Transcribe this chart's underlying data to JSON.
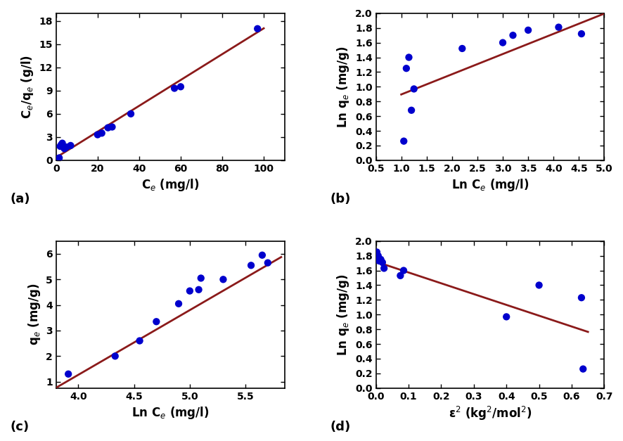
{
  "panel_a": {
    "scatter_x": [
      1.5,
      2.0,
      2.5,
      3.0,
      4.0,
      5.0,
      7.0,
      20.0,
      22.0,
      25.0,
      27.0,
      36.0,
      57.0,
      60.0,
      97.0
    ],
    "scatter_y": [
      0.3,
      1.8,
      2.0,
      2.2,
      1.5,
      1.7,
      1.9,
      3.3,
      3.5,
      4.2,
      4.3,
      6.0,
      9.3,
      9.5,
      17.0
    ],
    "line_x": [
      0,
      100
    ],
    "line_slope": 0.167,
    "line_intercept": 0.35,
    "xlabel": "C$_e$ (mg/l)",
    "ylabel": "C$_e$/q$_e$ (g/l)",
    "xlim": [
      0,
      110
    ],
    "ylim": [
      0,
      19
    ],
    "xticks": [
      0,
      20,
      40,
      60,
      80,
      100
    ],
    "yticks": [
      0,
      3,
      6,
      9,
      12,
      15,
      18
    ],
    "label": "(a)"
  },
  "panel_b": {
    "scatter_x": [
      1.05,
      1.1,
      1.15,
      1.2,
      1.25,
      2.2,
      3.0,
      3.2,
      3.5,
      4.1,
      4.55
    ],
    "scatter_y": [
      0.26,
      1.25,
      1.4,
      0.68,
      0.97,
      1.52,
      1.6,
      1.7,
      1.77,
      1.81,
      1.72
    ],
    "line_x": [
      1.0,
      5.0
    ],
    "line_slope": 0.275,
    "line_intercept": 0.62,
    "xlabel": "Ln C$_e$ (mg/l)",
    "ylabel": "Ln q$_e$ (mg/g)",
    "xlim": [
      0.5,
      5.0
    ],
    "ylim": [
      0.0,
      2.0
    ],
    "xticks": [
      0.5,
      1.0,
      1.5,
      2.0,
      2.5,
      3.0,
      3.5,
      4.0,
      4.5,
      5.0
    ],
    "yticks": [
      0.0,
      0.2,
      0.4,
      0.6,
      0.8,
      1.0,
      1.2,
      1.4,
      1.6,
      1.8,
      2.0
    ],
    "label": "(b)"
  },
  "panel_c": {
    "scatter_x": [
      3.91,
      4.33,
      4.55,
      4.7,
      4.9,
      5.0,
      5.08,
      5.1,
      5.3,
      5.55,
      5.65,
      5.7
    ],
    "scatter_y": [
      1.3,
      2.0,
      2.6,
      3.35,
      4.05,
      4.55,
      4.6,
      5.05,
      5.0,
      5.55,
      5.95,
      5.65
    ],
    "line_x": [
      3.8,
      5.82
    ],
    "line_slope": 2.53,
    "line_intercept": -8.85,
    "xlabel": "Ln C$_e$ (mg/l)",
    "ylabel": "q$_e$ (mg/g)",
    "xlim": [
      3.8,
      5.85
    ],
    "ylim": [
      0.75,
      6.5
    ],
    "xticks": [
      4.0,
      4.5,
      5.0,
      5.5
    ],
    "yticks": [
      1,
      2,
      3,
      4,
      5,
      6
    ],
    "label": "(c)"
  },
  "panel_d": {
    "scatter_x": [
      0.003,
      0.007,
      0.01,
      0.015,
      0.02,
      0.025,
      0.075,
      0.085,
      0.4,
      0.5,
      0.63,
      0.635
    ],
    "scatter_y": [
      1.85,
      1.8,
      1.73,
      1.75,
      1.71,
      1.63,
      1.53,
      1.6,
      0.97,
      1.4,
      1.23,
      0.26
    ],
    "line_x": [
      0.0,
      0.65
    ],
    "line_slope": -1.47,
    "line_intercept": 1.72,
    "xlabel": "ε$^2$ (kg$^2$/mol$^2$)",
    "ylabel": "Ln q$_e$ (mg/g)",
    "xlim": [
      0.0,
      0.7
    ],
    "ylim": [
      0.0,
      2.0
    ],
    "xticks": [
      0.0,
      0.1,
      0.2,
      0.3,
      0.4,
      0.5,
      0.6,
      0.7
    ],
    "yticks": [
      0.0,
      0.2,
      0.4,
      0.6,
      0.8,
      1.0,
      1.2,
      1.4,
      1.6,
      1.8,
      2.0
    ],
    "label": "(d)"
  },
  "dot_color": "#0000CD",
  "line_color": "#8B1A1A",
  "dot_size": 55,
  "line_width": 2.0,
  "label_fontsize": 13,
  "tick_fontsize": 10,
  "axis_label_fontsize": 12
}
